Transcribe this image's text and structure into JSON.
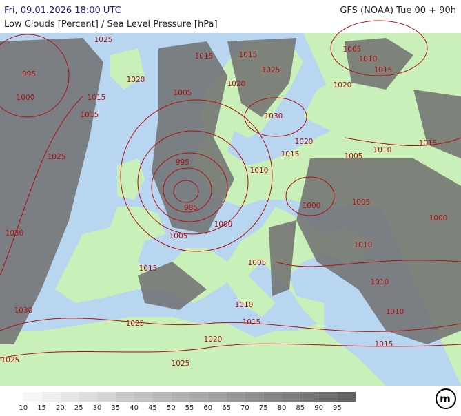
{
  "header": {
    "datetime": "Fri, 09.01.2026 18:00 UTC",
    "model": "GFS (NOAA) Tue 00 + 90h",
    "subtitle": "Low Clouds [Percent] / Sea Level Pressure [hPa]"
  },
  "isobar_labels": [
    "1025",
    "995",
    "1000",
    "1015",
    "1015",
    "1020",
    "1015",
    "1015",
    "1025",
    "1020",
    "1005",
    "1005",
    "1010",
    "1015",
    "1020",
    "1030",
    "1020",
    "1015",
    "1010",
    "1015",
    "1005",
    "1025",
    "995",
    "1010",
    "985",
    "1000",
    "1005",
    "1000",
    "1000",
    "1005",
    "1030",
    "1010",
    "1005",
    "1015",
    "1010",
    "1010",
    "1030",
    "1010",
    "1015",
    "1025",
    "1020",
    "1015",
    "1025",
    "1025"
  ],
  "legend": {
    "labels": [
      10,
      15,
      20,
      25,
      30,
      35,
      40,
      45,
      50,
      55,
      60,
      65,
      70,
      75,
      80,
      85,
      90,
      95
    ]
  },
  "logo": "m"
}
